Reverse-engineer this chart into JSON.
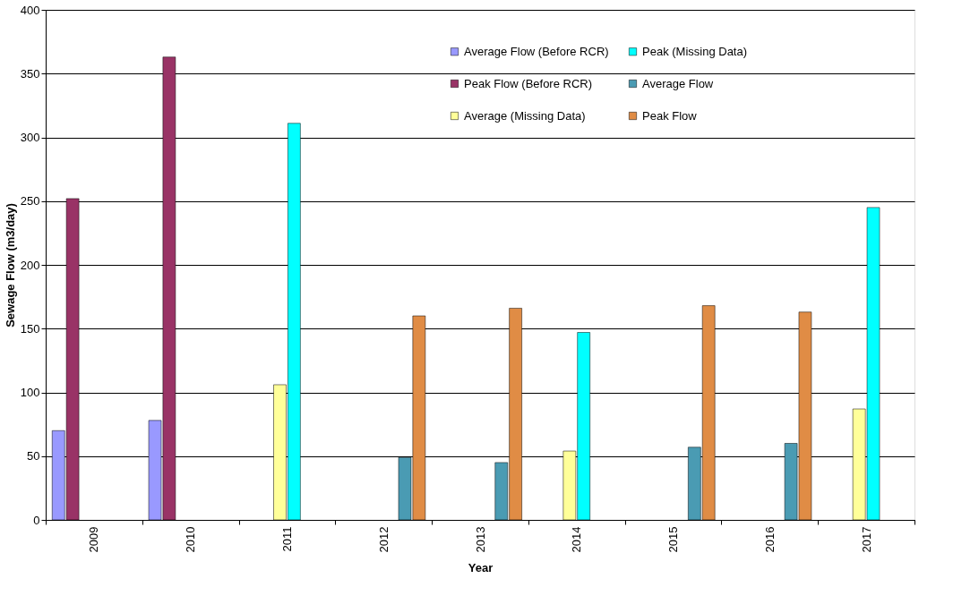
{
  "chart_data": {
    "type": "bar",
    "xlabel": "Year",
    "ylabel": "Sewage Flow (m3/day)",
    "categories": [
      "2009",
      "2010",
      "2011",
      "2012",
      "2013",
      "2014",
      "2015",
      "2016",
      "2017"
    ],
    "series": [
      {
        "name": "Average Flow (Before RCR)",
        "color": "#9999ff",
        "values": [
          70,
          78,
          null,
          null,
          null,
          null,
          null,
          null,
          null
        ]
      },
      {
        "name": "Peak Flow  (Before RCR)",
        "color": "#993366",
        "values": [
          252,
          363,
          null,
          null,
          null,
          null,
          null,
          null,
          null
        ]
      },
      {
        "name": "Average (Missing Data)",
        "color": "#ffff99",
        "values": [
          null,
          null,
          106,
          null,
          null,
          54,
          null,
          null,
          87
        ]
      },
      {
        "name": "Peak (Missing Data)",
        "color": "#00ffff",
        "values": [
          null,
          null,
          311,
          null,
          null,
          147,
          null,
          null,
          245
        ]
      },
      {
        "name": "Average Flow",
        "color": "#4a9bb3",
        "values": [
          null,
          null,
          null,
          49,
          45,
          null,
          57,
          60,
          null
        ]
      },
      {
        "name": "Peak Flow",
        "color": "#e08c45",
        "values": [
          null,
          null,
          null,
          160,
          166,
          null,
          168,
          163,
          null
        ]
      }
    ],
    "ylim": [
      0,
      400
    ],
    "yticks": [
      0,
      50,
      100,
      150,
      200,
      250,
      300,
      350,
      400
    ],
    "grid": "y",
    "legend": "top right"
  }
}
